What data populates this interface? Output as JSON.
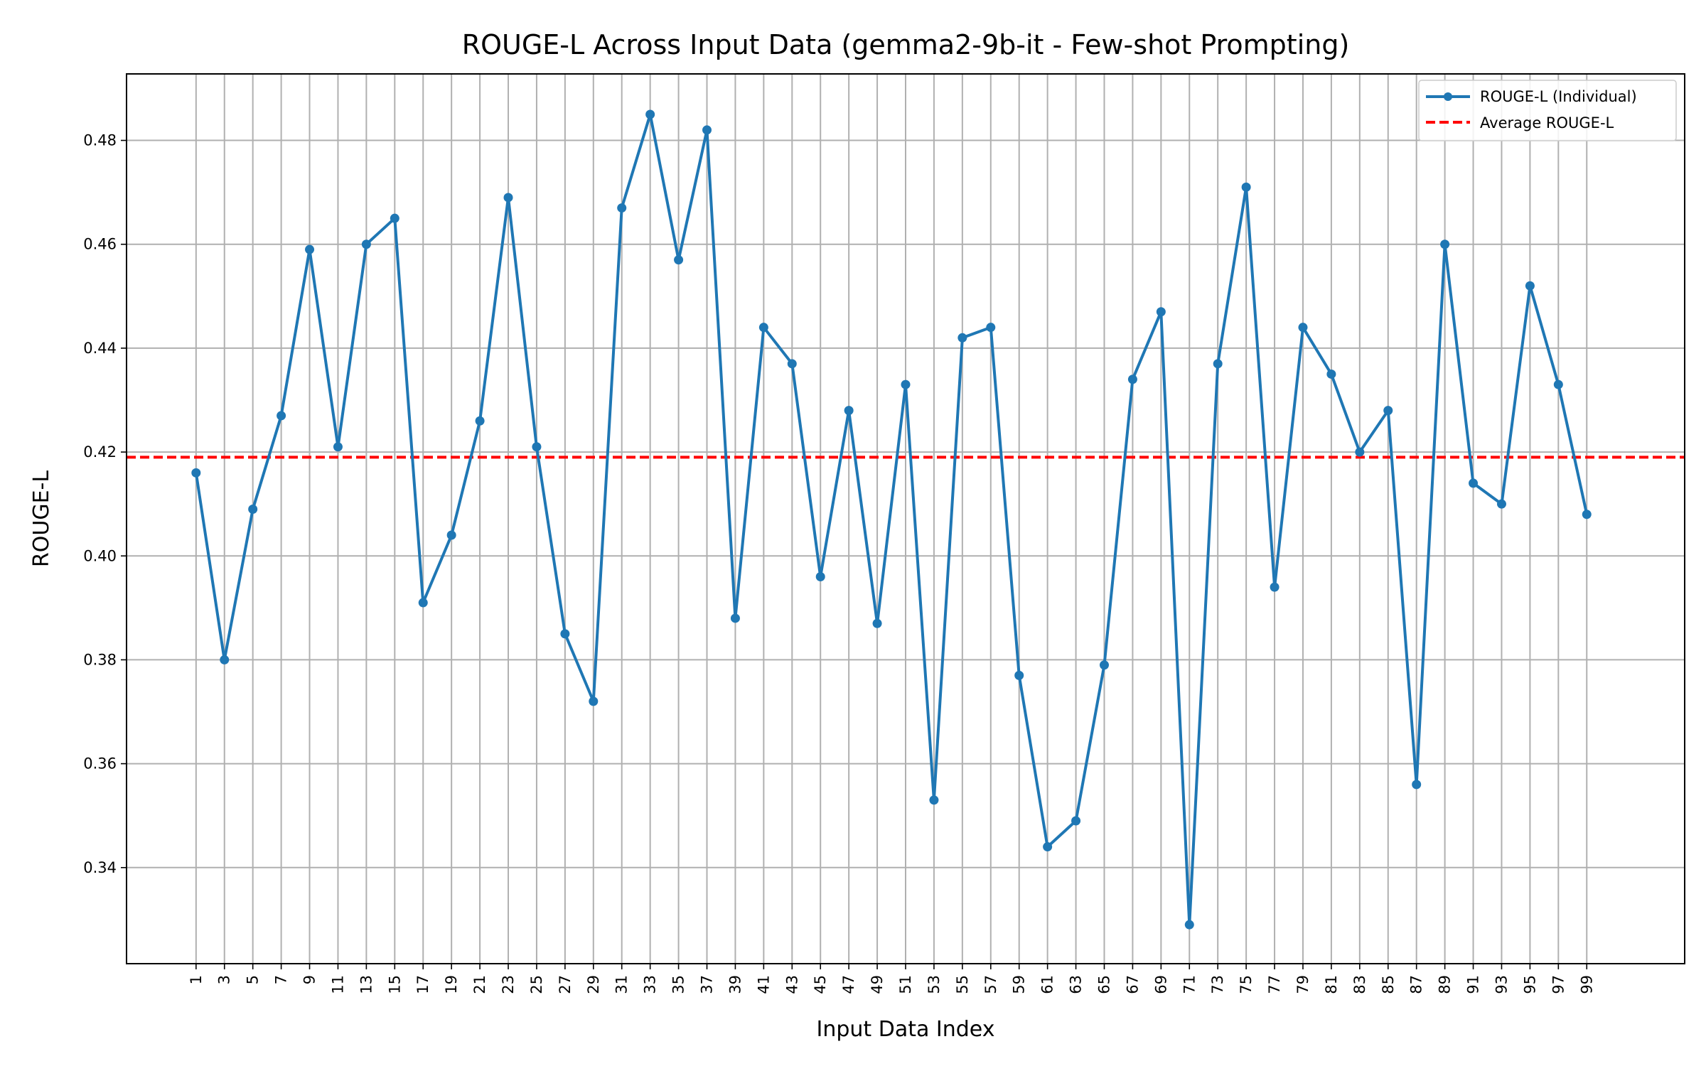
{
  "chart_data": {
    "type": "line",
    "title": "ROUGE-L Across Input Data (gemma2-9b-it - Few-shot Prompting)",
    "xlabel": "Input Data Index",
    "ylabel": "ROUGE-L",
    "grid": true,
    "legend_position": "top-right",
    "xlim": [
      -3.9,
      105.9
    ],
    "ylim": [
      0.3215,
      0.4928
    ],
    "x_ticks": [
      1,
      3,
      5,
      7,
      9,
      11,
      13,
      15,
      17,
      19,
      21,
      23,
      25,
      27,
      29,
      31,
      33,
      35,
      37,
      39,
      41,
      43,
      45,
      47,
      49,
      51,
      53,
      55,
      57,
      59,
      61,
      63,
      65,
      67,
      69,
      71,
      73,
      75,
      77,
      79,
      81,
      83,
      85,
      87,
      89,
      91,
      93,
      95,
      97,
      99
    ],
    "y_ticks": [
      0.34,
      0.36,
      0.38,
      0.4,
      0.42,
      0.44,
      0.46,
      0.48
    ],
    "y_tick_labels": [
      "0.34",
      "0.36",
      "0.38",
      "0.40",
      "0.42",
      "0.44",
      "0.46",
      "0.48"
    ],
    "series": [
      {
        "name": "ROUGE-L (Individual)",
        "color": "#1f77b4",
        "style": "line-with-markers",
        "x": [
          1,
          3,
          5,
          7,
          9,
          11,
          13,
          15,
          17,
          19,
          21,
          23,
          25,
          27,
          29,
          31,
          33,
          35,
          37,
          39,
          41,
          43,
          45,
          47,
          49,
          51,
          53,
          55,
          57,
          59,
          61,
          63,
          65,
          67,
          69,
          71,
          73,
          75,
          77,
          79,
          81,
          83,
          85,
          87,
          89,
          91,
          93,
          95,
          97,
          99
        ],
        "values": [
          0.416,
          0.38,
          0.409,
          0.427,
          0.459,
          0.421,
          0.46,
          0.465,
          0.391,
          0.404,
          0.426,
          0.469,
          0.421,
          0.385,
          0.372,
          0.467,
          0.485,
          0.457,
          0.482,
          0.388,
          0.444,
          0.437,
          0.396,
          0.428,
          0.387,
          0.433,
          0.353,
          0.442,
          0.444,
          0.377,
          0.344,
          0.349,
          0.379,
          0.434,
          0.447,
          0.329,
          0.437,
          0.471,
          0.394,
          0.444,
          0.435,
          0.42,
          0.428,
          0.356,
          0.46,
          0.414,
          0.41,
          0.452,
          0.433,
          0.408
        ]
      },
      {
        "name": "Average ROUGE-L",
        "color": "#ff0000",
        "style": "dashed-hline",
        "value": 0.419
      }
    ]
  }
}
